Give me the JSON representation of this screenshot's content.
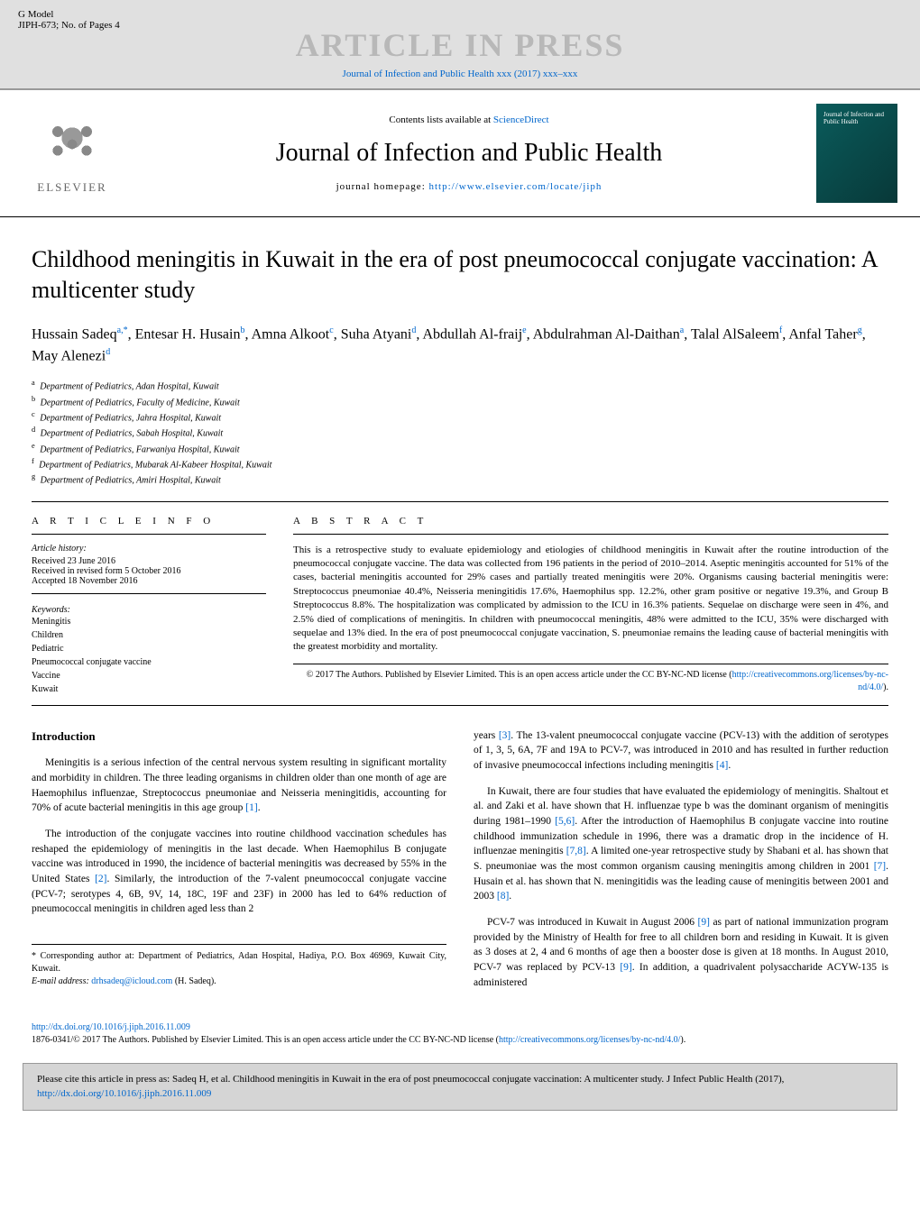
{
  "header": {
    "model": "G Model",
    "ref": "JIPH-673;   No. of Pages 4",
    "article_in_press": "ARTICLE IN PRESS",
    "journal_link": "Journal of Infection and Public Health xxx (2017) xxx–xxx"
  },
  "banner": {
    "elsevier": "ELSEVIER",
    "contents": "Contents lists available at ",
    "sciencedirect": "ScienceDirect",
    "journal_title": "Journal of Infection and Public Health",
    "homepage_label": "journal homepage: ",
    "homepage_url": "http://www.elsevier.com/locate/jiph",
    "cover_text": "Journal of Infection and Public Health"
  },
  "article": {
    "title": "Childhood meningitis in Kuwait in the era of post pneumococcal conjugate vaccination: A multicenter study",
    "authors_html": "Hussain Sadeq<sup>a,*</sup>, Entesar H. Husain<sup>b</sup>, Amna Alkoot<sup>c</sup>, Suha Atyani<sup>d</sup>, Abdullah Al-fraij<sup>e</sup>, Abdulrahman Al-Daithan<sup>a</sup>, Talal AlSaleem<sup>f</sup>, Anfal Taher<sup>g</sup>, May Alenezi<sup>d</sup>",
    "affiliations": [
      {
        "sup": "a",
        "text": "Department of Pediatrics, Adan Hospital, Kuwait"
      },
      {
        "sup": "b",
        "text": "Department of Pediatrics, Faculty of Medicine, Kuwait"
      },
      {
        "sup": "c",
        "text": "Department of Pediatrics, Jahra Hospital, Kuwait"
      },
      {
        "sup": "d",
        "text": "Department of Pediatrics, Sabah Hospital, Kuwait"
      },
      {
        "sup": "e",
        "text": "Department of Pediatrics, Farwaniya Hospital, Kuwait"
      },
      {
        "sup": "f",
        "text": "Department of Pediatrics, Mubarak Al-Kabeer Hospital, Kuwait"
      },
      {
        "sup": "g",
        "text": "Department of Pediatrics, Amiri Hospital, Kuwait"
      }
    ]
  },
  "info": {
    "heading": "A R T I C L E   I N F O",
    "history_label": "Article history:",
    "received": "Received 23 June 2016",
    "revised": "Received in revised form 5 October 2016",
    "accepted": "Accepted 18 November 2016",
    "keywords_label": "Keywords:",
    "keywords": [
      "Meningitis",
      "Children",
      "Pediatric",
      "Pneumococcal conjugate vaccine",
      "Vaccine",
      "Kuwait"
    ]
  },
  "abstract": {
    "heading": "A B S T R A C T",
    "text": "This is a retrospective study to evaluate epidemiology and etiologies of childhood meningitis in Kuwait after the routine introduction of the pneumococcal conjugate vaccine. The data was collected from 196 patients in the period of 2010–2014. Aseptic meningitis accounted for 51% of the cases, bacterial meningitis accounted for 29% cases and partially treated meningitis were 20%. Organisms causing bacterial meningitis were: Streptococcus pneumoniae 40.4%, Neisseria meningitidis 17.6%, Haemophilus spp. 12.2%, other gram positive or negative 19.3%, and Group B Streptococcus 8.8%. The hospitalization was complicated by admission to the ICU in 16.3% patients. Sequelae on discharge were seen in 4%, and 2.5% died of complications of meningitis. In children with pneumococcal meningitis, 48% were admitted to the ICU, 35% were discharged with sequelae and 13% died. In the era of post pneumococcal conjugate vaccination, S. pneumoniae remains the leading cause of bacterial meningitis with the greatest morbidity and mortality.",
    "copyright": "© 2017 The Authors. Published by Elsevier Limited. This is an open access article under the CC BY-NC-ND license (",
    "license_url": "http://creativecommons.org/licenses/by-nc-nd/4.0/",
    "copyright_end": ")."
  },
  "body": {
    "intro_heading": "Introduction",
    "col1_p1": "Meningitis is a serious infection of the central nervous system resulting in significant mortality and morbidity in children. The three leading organisms in children older than one month of age are Haemophilus influenzae, Streptococcus pneumoniae and Neisseria meningitidis, accounting for 70% of acute bacterial meningitis in this age group ",
    "col1_p1_ref": "[1]",
    "col1_p2a": "The introduction of the conjugate vaccines into routine childhood vaccination schedules has reshaped the epidemiology of meningitis in the last decade. When Haemophilus B conjugate vaccine was introduced in 1990, the incidence of bacterial meningitis was decreased by 55% in the United States ",
    "col1_p2_ref": "[2]",
    "col1_p2b": ". Similarly, the introduction of the 7-valent pneumococcal conjugate vaccine (PCV-7; serotypes 4, 6B, 9V, 14, 18C, 19F and 23F) in 2000 has led to 64% reduction of pneumococcal meningitis in children aged less than 2",
    "col2_p1a": "years ",
    "col2_p1_ref1": "[3]",
    "col2_p1b": ". The 13-valent pneumococcal conjugate vaccine (PCV-13) with the addition of serotypes of 1, 3, 5, 6A, 7F and 19A to PCV-7, was introduced in 2010 and has resulted in further reduction of invasive pneumococcal infections including meningitis ",
    "col2_p1_ref2": "[4]",
    "col2_p2a": "In Kuwait, there are four studies that have evaluated the epidemiology of meningitis. Shaltout et al. and Zaki et al. have shown that H. influenzae type b was the dominant organism of meningitis during 1981–1990 ",
    "col2_p2_ref1": "[5,6]",
    "col2_p2b": ". After the introduction of Haemophilus B conjugate vaccine into routine childhood immunization schedule in 1996, there was a dramatic drop in the incidence of H. influenzae meningitis ",
    "col2_p2_ref2": "[7,8]",
    "col2_p2c": ". A limited one-year retrospective study by Shabani et al. has shown that S. pneumoniae was the most common organism causing meningitis among children in 2001 ",
    "col2_p2_ref3": "[7]",
    "col2_p2d": ". Husain et al. has shown that N. meningitidis was the leading cause of meningitis between 2001 and 2003 ",
    "col2_p2_ref4": "[8]",
    "col2_p3a": "PCV-7 was introduced in Kuwait in August 2006 ",
    "col2_p3_ref1": "[9]",
    "col2_p3b": " as part of national immunization program provided by the Ministry of Health for free to all children born and residing in Kuwait. It is given as 3 doses at 2, 4 and 6 months of age then a booster dose is given at 18 months. In August 2010, PCV-7 was replaced by PCV-13 ",
    "col2_p3_ref2": "[9]",
    "col2_p3c": ". In addition, a quadrivalent polysaccharide ACYW-135 is administered"
  },
  "corresponding": {
    "text": "* Corresponding author at: Department of Pediatrics, Adan Hospital, Hadiya, P.O. Box 46969, Kuwait City, Kuwait.",
    "email_label": "E-mail address: ",
    "email": "drhsadeq@icloud.com",
    "email_suffix": " (H. Sadeq)."
  },
  "footer": {
    "doi": "http://dx.doi.org/10.1016/j.jiph.2016.11.009",
    "issn_text": "1876-0341/© 2017 The Authors. Published by Elsevier Limited. This is an open access article under the CC BY-NC-ND license (",
    "license_url": "http://creativecommons.org/licenses/by-nc-nd/4.0/",
    "issn_end": ")."
  },
  "citation": {
    "text": "Please cite this article in press as: Sadeq H, et al. Childhood meningitis in Kuwait in the era of post pneumococcal conjugate vaccination: A multicenter study. J Infect Public Health (2017), ",
    "url": "http://dx.doi.org/10.1016/j.jiph.2016.11.009"
  }
}
